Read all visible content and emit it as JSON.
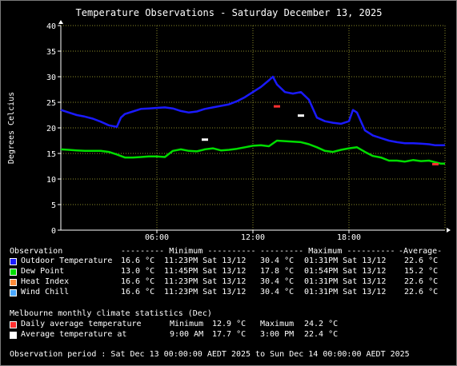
{
  "chart_data": {
    "type": "line",
    "title": "Temperature Observations - Saturday December 13, 2025",
    "ylabel": "Degrees Celcius",
    "xlabel": "",
    "ylim": [
      0,
      40
    ],
    "y_ticks": [
      "0",
      "5",
      "10",
      "15",
      "20",
      "25",
      "30",
      "35",
      "40"
    ],
    "xlim_hours": [
      0,
      24
    ],
    "x_ticks": [
      {
        "hour": 6,
        "label": "06:00"
      },
      {
        "hour": 12,
        "label": "12:00"
      },
      {
        "hour": 18,
        "label": "18:00"
      }
    ],
    "grid": true,
    "series": [
      {
        "name": "Outdoor Temperature",
        "color": "#1a1aff",
        "x": [
          0,
          0.5,
          1,
          1.5,
          2,
          2.5,
          3,
          3.5,
          3.75,
          4,
          4.5,
          5,
          5.5,
          6,
          6.5,
          7,
          7.5,
          8,
          8.5,
          9,
          9.5,
          10,
          10.5,
          11,
          11.5,
          12,
          12.5,
          13,
          13.25,
          13.5,
          14,
          14.5,
          15,
          15.5,
          16,
          16.5,
          17,
          17.5,
          18,
          18.25,
          18.5,
          19,
          19.5,
          20,
          20.5,
          21,
          21.5,
          22,
          22.5,
          23,
          23.4,
          24
        ],
        "values": [
          23.5,
          23.0,
          22.5,
          22.2,
          21.8,
          21.2,
          20.5,
          20.2,
          22.0,
          22.7,
          23.2,
          23.7,
          23.8,
          23.9,
          24.0,
          23.8,
          23.3,
          23.0,
          23.2,
          23.7,
          24.0,
          24.3,
          24.6,
          25.2,
          26.0,
          27.0,
          28.0,
          29.3,
          30.0,
          28.5,
          27.0,
          26.7,
          27.0,
          25.5,
          22.0,
          21.3,
          21.0,
          20.8,
          21.3,
          23.5,
          23.0,
          19.5,
          18.5,
          18.0,
          17.5,
          17.2,
          17.0,
          17.0,
          16.9,
          16.8,
          16.6,
          16.6
        ]
      },
      {
        "name": "Dew Point",
        "color": "#00dd00",
        "x": [
          0,
          0.5,
          1,
          1.5,
          2,
          2.5,
          3,
          3.5,
          4,
          4.5,
          5,
          5.5,
          6,
          6.5,
          7,
          7.5,
          8,
          8.5,
          9,
          9.5,
          10,
          10.5,
          11,
          11.5,
          12,
          12.5,
          13,
          13.5,
          14,
          14.5,
          15,
          15.5,
          16,
          16.5,
          17,
          17.5,
          18,
          18.5,
          19,
          19.5,
          20,
          20.5,
          21,
          21.5,
          22,
          22.5,
          23,
          23.75,
          24
        ],
        "values": [
          15.8,
          15.7,
          15.6,
          15.5,
          15.5,
          15.5,
          15.3,
          14.8,
          14.2,
          14.2,
          14.3,
          14.4,
          14.4,
          14.3,
          15.5,
          15.8,
          15.5,
          15.4,
          15.8,
          16.0,
          15.6,
          15.7,
          15.9,
          16.2,
          16.5,
          16.6,
          16.4,
          17.5,
          17.4,
          17.3,
          17.2,
          16.8,
          16.2,
          15.5,
          15.3,
          15.7,
          16.0,
          16.2,
          15.3,
          14.5,
          14.2,
          13.6,
          13.6,
          13.4,
          13.7,
          13.5,
          13.6,
          13.0,
          13.0
        ]
      },
      {
        "name": "Heat Index",
        "color": "#ff8c3a",
        "x": [],
        "values": []
      },
      {
        "name": "Wind Chill",
        "color": "#4aa8ff",
        "x": [],
        "values": []
      }
    ],
    "climate_markers": [
      {
        "kind": "Daily average temperature",
        "color": "#ff3030",
        "points": [
          {
            "hour": 13.5,
            "value": 24.2
          },
          {
            "hour": 23.4,
            "value": 12.9
          }
        ]
      },
      {
        "kind": "Average temperature at",
        "color": "#ffffff",
        "points": [
          {
            "hour": 9.0,
            "value": 17.7
          },
          {
            "hour": 15.0,
            "value": 22.4
          }
        ]
      }
    ]
  },
  "legend": {
    "header": {
      "observation": "Observation",
      "minimum": "--------- Minimum ----------",
      "maximum": "--------- Maximum ----------",
      "average": "-Average-"
    },
    "rows": [
      {
        "name": "Outdoor Temperature",
        "color": "#1a1aff",
        "min": "16.6 °C",
        "min_time": "11:23PM Sat 13/12",
        "max": "30.4 °C",
        "max_time": "01:31PM Sat 13/12",
        "avg": "22.6 °C"
      },
      {
        "name": "Dew Point",
        "color": "#00dd00",
        "min": "13.0 °C",
        "min_time": "11:45PM Sat 13/12",
        "max": "17.8 °C",
        "max_time": "01:54PM Sat 13/12",
        "avg": "15.2 °C"
      },
      {
        "name": "Heat Index",
        "color": "#ff8c3a",
        "min": "16.6 °C",
        "min_time": "11:23PM Sat 13/12",
        "max": "30.4 °C",
        "max_time": "01:31PM Sat 13/12",
        "avg": "22.6 °C"
      },
      {
        "name": "Wind Chill",
        "color": "#4aa8ff",
        "min": "16.6 °C",
        "min_time": "11:23PM Sat 13/12",
        "max": "30.4 °C",
        "max_time": "01:31PM Sat 13/12",
        "avg": "22.6 °C"
      }
    ]
  },
  "climate": {
    "title": "Melbourne monthly climate statistics (Dec)",
    "rows": [
      {
        "label": "Daily average temperature",
        "color": "#ff3030",
        "min_label": "Minimum",
        "min_val": "12.9 °C",
        "max_label": "Maximum",
        "max_val": "24.2 °C"
      },
      {
        "label": "Average temperature at",
        "color": "#ffffff",
        "min_label": "9:00 AM",
        "min_val": "17.7 °C",
        "max_label": "3:00 PM",
        "max_val": "22.4 °C"
      }
    ]
  },
  "footer": {
    "period": "Observation period : Sat Dec 13 00:00:00 AEDT 2025 to Sun Dec 14 00:00:00 AEDT 2025"
  }
}
